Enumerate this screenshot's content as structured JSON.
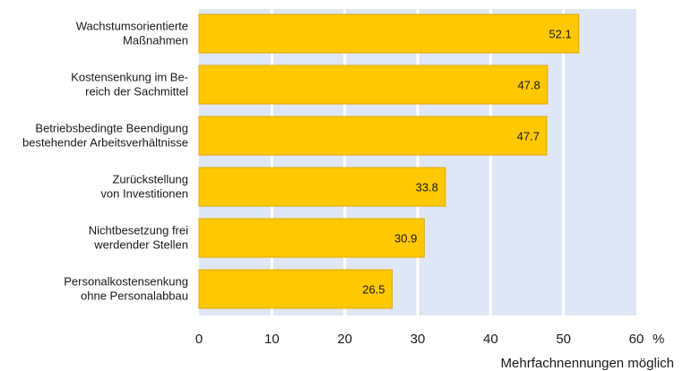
{
  "chart_data": {
    "type": "bar",
    "orientation": "horizontal",
    "categories": [
      [
        "Wachstumsorientierte",
        "Maßnahmen"
      ],
      [
        "Kostensenkung im Be-",
        "reich der Sachmittel"
      ],
      [
        "Betriebsbedingte Beendigung",
        "bestehender Arbeitsverhältnisse"
      ],
      [
        "Zurückstellung",
        "von Investitionen"
      ],
      [
        "Nichtbesetzung frei",
        "werdender Stellen"
      ],
      [
        "Personalkostensenkung",
        "ohne Personalabbau"
      ]
    ],
    "values": [
      52.1,
      47.8,
      47.7,
      33.8,
      30.9,
      26.5
    ],
    "value_labels": [
      "52.1",
      "47.8",
      "47.7",
      "33.8",
      "30.9",
      "26.5"
    ],
    "xlim": [
      0,
      60
    ],
    "x_ticks": [
      "0",
      "10",
      "20",
      "30",
      "40",
      "50",
      "60"
    ],
    "unit": "%",
    "note": "Mehrfachnennungen möglich",
    "grid": "vertical",
    "colors": {
      "bar": "#ffc800",
      "bar_edge": "#e0a800",
      "plot_bg": "#dfe6f6",
      "grid": "#ffffff"
    }
  }
}
